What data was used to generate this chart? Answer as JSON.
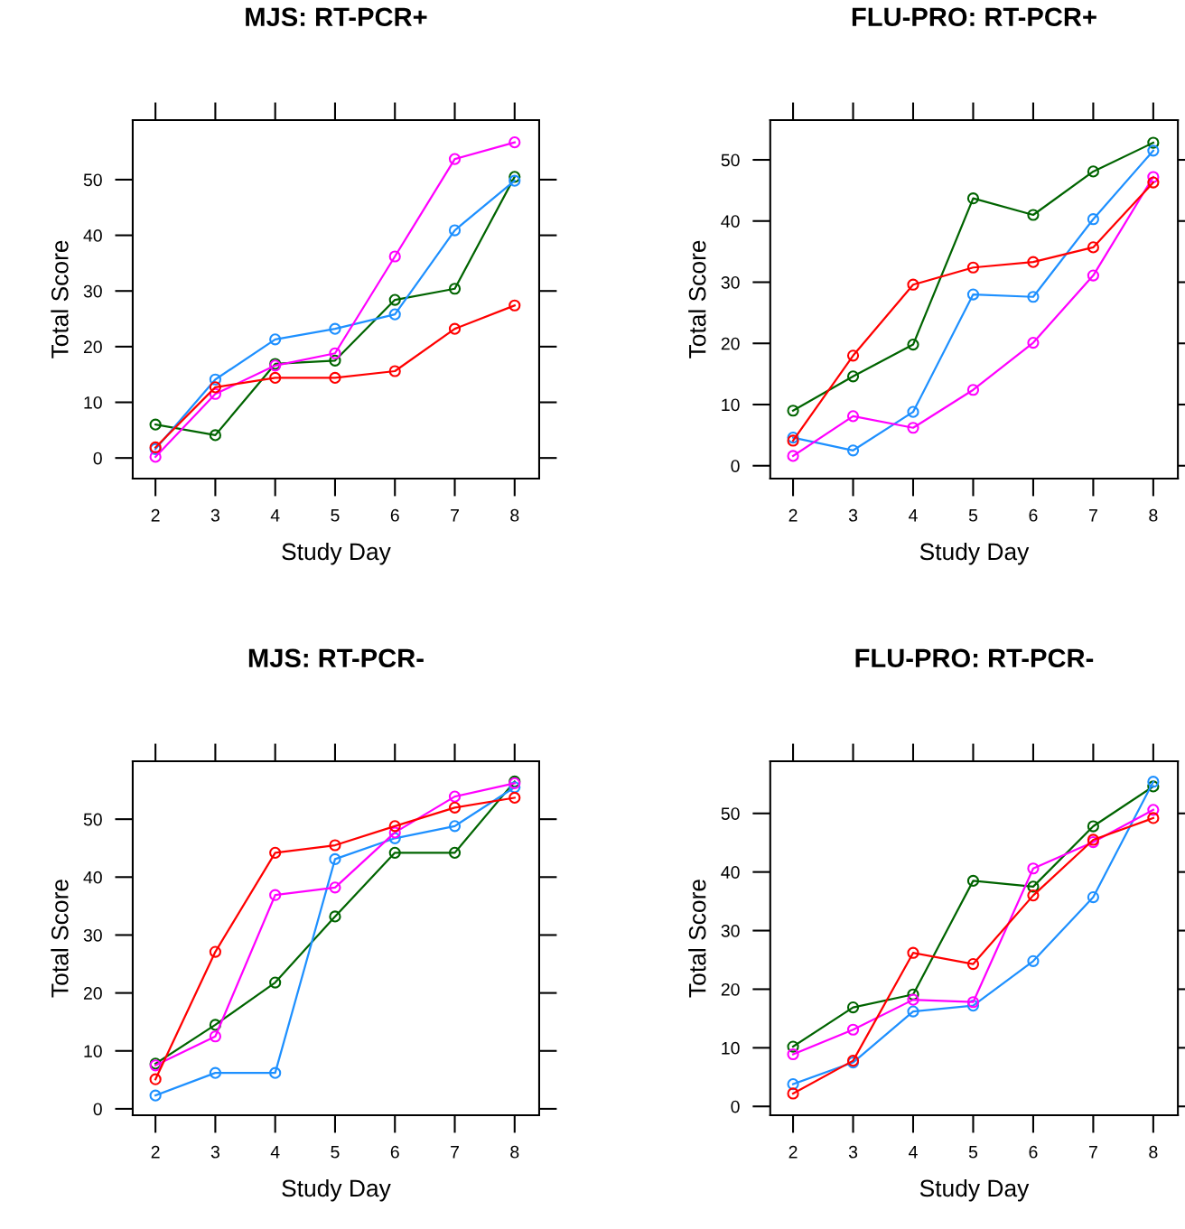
{
  "chart_data": [
    {
      "type": "line",
      "title": "MJS: RT-PCR+",
      "xlabel": "Study Day",
      "ylabel": "Total Score",
      "x": [
        2,
        3,
        4,
        5,
        6,
        7,
        8
      ],
      "xlim": [
        1.62,
        8.41
      ],
      "ylim": [
        -3.7,
        60.7
      ],
      "xticks": [
        2,
        3,
        4,
        5,
        6,
        7,
        8
      ],
      "yticks": [
        0,
        10,
        20,
        30,
        40,
        50
      ],
      "marker": "circle",
      "line_style": "solid",
      "series": [
        {
          "color": "#006400",
          "values": [
            6.0,
            4.1,
            16.9,
            17.5,
            28.4,
            30.4,
            50.5
          ]
        },
        {
          "color": "#1e90ff",
          "values": [
            1.6,
            14.1,
            21.3,
            23.2,
            25.8,
            40.9,
            49.8
          ]
        },
        {
          "color": "#ff00ff",
          "values": [
            0.2,
            11.5,
            16.6,
            18.8,
            36.2,
            53.7,
            56.7
          ]
        },
        {
          "color": "#ff0000",
          "values": [
            1.9,
            12.7,
            14.4,
            14.4,
            15.6,
            23.2,
            27.4
          ]
        }
      ]
    },
    {
      "type": "line",
      "title": "FLU-PRO: RT-PCR+",
      "xlabel": "Study Day",
      "ylabel": "Total Score",
      "x": [
        2,
        3,
        4,
        5,
        6,
        7,
        8
      ],
      "xlim": [
        1.62,
        8.41
      ],
      "ylim": [
        -2.1,
        56.5
      ],
      "xticks": [
        2,
        3,
        4,
        5,
        6,
        7,
        8
      ],
      "yticks": [
        0,
        10,
        20,
        30,
        40,
        50
      ],
      "marker": "circle",
      "line_style": "solid",
      "series": [
        {
          "color": "#006400",
          "values": [
            9.0,
            14.6,
            19.8,
            43.7,
            41.0,
            48.1,
            52.8
          ]
        },
        {
          "color": "#1e90ff",
          "values": [
            4.6,
            2.5,
            8.8,
            28.0,
            27.6,
            40.3,
            51.5
          ]
        },
        {
          "color": "#ff00ff",
          "values": [
            1.6,
            8.1,
            6.2,
            12.4,
            20.1,
            31.1,
            47.2
          ]
        },
        {
          "color": "#ff0000",
          "values": [
            4.1,
            18.0,
            29.6,
            32.4,
            33.3,
            35.7,
            46.3
          ]
        }
      ]
    },
    {
      "type": "line",
      "title": "MJS: RT-PCR-",
      "xlabel": "Study Day",
      "ylabel": "Total Score",
      "x": [
        2,
        3,
        4,
        5,
        6,
        7,
        8
      ],
      "xlim": [
        1.62,
        8.41
      ],
      "ylim": [
        -1.1,
        60.0
      ],
      "xticks": [
        2,
        3,
        4,
        5,
        6,
        7,
        8
      ],
      "yticks": [
        0,
        10,
        20,
        30,
        40,
        50
      ],
      "marker": "circle",
      "line_style": "solid",
      "series": [
        {
          "color": "#006400",
          "values": [
            7.8,
            14.5,
            21.8,
            33.2,
            44.2,
            44.2,
            56.5
          ]
        },
        {
          "color": "#1e90ff",
          "values": [
            2.3,
            6.2,
            6.2,
            43.1,
            46.7,
            48.8,
            55.5
          ]
        },
        {
          "color": "#ff00ff",
          "values": [
            7.5,
            12.5,
            36.9,
            38.2,
            47.7,
            53.9,
            56.2
          ]
        },
        {
          "color": "#ff0000",
          "values": [
            5.1,
            27.1,
            44.2,
            45.5,
            48.8,
            52.0,
            53.7
          ]
        }
      ]
    },
    {
      "type": "line",
      "title": "FLU-PRO: RT-PCR-",
      "xlabel": "Study Day",
      "ylabel": "Total Score",
      "x": [
        2,
        3,
        4,
        5,
        6,
        7,
        8
      ],
      "xlim": [
        1.62,
        8.41
      ],
      "ylim": [
        -1.5,
        58.9
      ],
      "xticks": [
        2,
        3,
        4,
        5,
        6,
        7,
        8
      ],
      "yticks": [
        0,
        10,
        20,
        30,
        40,
        50
      ],
      "marker": "circle",
      "line_style": "solid",
      "series": [
        {
          "color": "#006400",
          "values": [
            10.2,
            16.9,
            19.1,
            38.5,
            37.5,
            47.8,
            54.6
          ]
        },
        {
          "color": "#1e90ff",
          "values": [
            3.8,
            7.5,
            16.2,
            17.2,
            24.8,
            35.7,
            55.4
          ]
        },
        {
          "color": "#ff00ff",
          "values": [
            8.9,
            13.1,
            18.2,
            17.8,
            40.6,
            45.1,
            50.6
          ]
        },
        {
          "color": "#ff0000",
          "values": [
            2.2,
            7.8,
            26.2,
            24.3,
            36.0,
            45.5,
            49.2
          ]
        }
      ]
    }
  ]
}
